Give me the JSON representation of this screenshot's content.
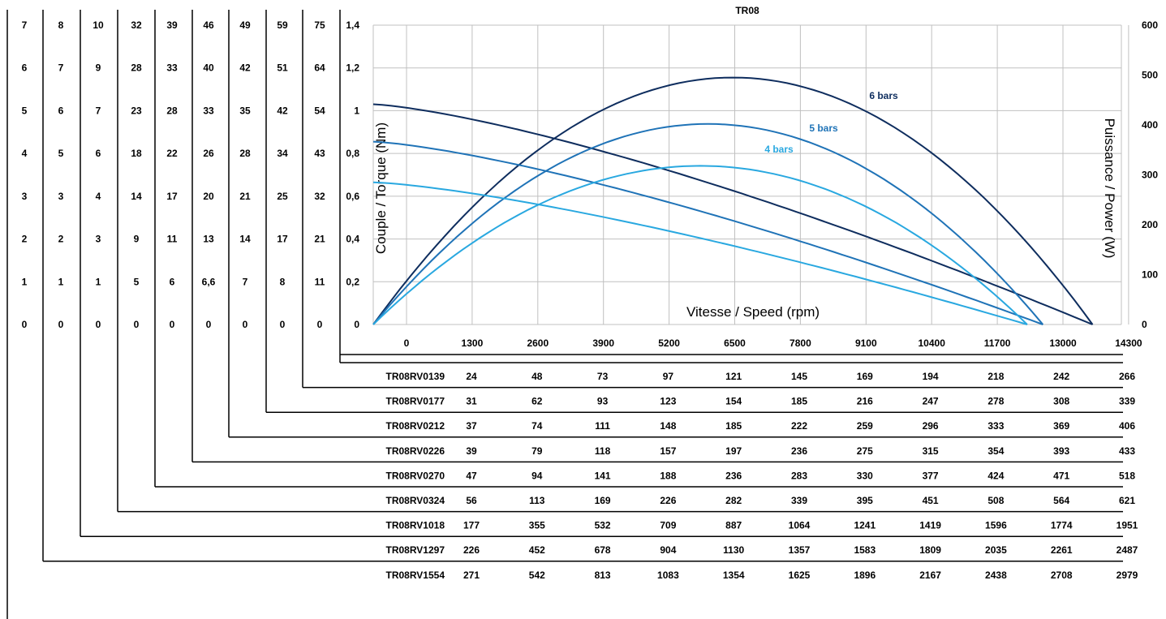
{
  "chart_data": {
    "type": "line",
    "title": "TR08",
    "xlabel": "Vitesse / Speed (rpm)",
    "ylabel": "Couple / Torque (Nm)",
    "ylabel_right": "Puissance / Power (W)",
    "xlim": [
      0,
      14300
    ],
    "ylim": [
      0,
      1.4
    ],
    "ylim_right": [
      0,
      600
    ],
    "grid": true,
    "x_ticks": [
      "0",
      "1300",
      "2600",
      "3900",
      "5200",
      "6500",
      "7800",
      "9100",
      "10400",
      "11700",
      "13000",
      "14300"
    ],
    "y_ticks": [
      "0",
      "0,2",
      "0,4",
      "0,6",
      "0,8",
      "1",
      "1,2",
      "1,4"
    ],
    "y_right_ticks": [
      "0",
      "100",
      "200",
      "300",
      "400",
      "500",
      "600"
    ],
    "series": [
      {
        "name": "6 bars",
        "color": "#0e2d5e",
        "free_speed": 13750,
        "stall_torque": 1.03,
        "max_power": 495
      },
      {
        "name": "5 bars",
        "color": "#1f73b7",
        "free_speed": 12800,
        "stall_torque": 0.855,
        "max_power": 402
      },
      {
        "name": "4 bars",
        "color": "#29a8e0",
        "free_speed": 12500,
        "stall_torque": 0.665,
        "max_power": 318
      }
    ]
  },
  "left_scales": [
    {
      "model": "TR08RV1554",
      "values": [
        "0",
        "1",
        "2",
        "3",
        "4",
        "5",
        "6",
        "7"
      ],
      "speeds": [
        "271",
        "542",
        "813",
        "1083",
        "1354",
        "1625",
        "1896",
        "2167",
        "2438",
        "2708",
        "2979"
      ]
    },
    {
      "model": "TR08RV1297",
      "values": [
        "0",
        "1",
        "2",
        "3",
        "5",
        "6",
        "7",
        "8"
      ],
      "speeds": [
        "226",
        "452",
        "678",
        "904",
        "1130",
        "1357",
        "1583",
        "1809",
        "2035",
        "2261",
        "2487"
      ]
    },
    {
      "model": "TR08RV1018",
      "values": [
        "0",
        "1",
        "3",
        "4",
        "6",
        "7",
        "9",
        "10"
      ],
      "speeds": [
        "177",
        "355",
        "532",
        "709",
        "887",
        "1064",
        "1241",
        "1419",
        "1596",
        "1774",
        "1951"
      ]
    },
    {
      "model": "TR08RV0324",
      "values": [
        "0",
        "5",
        "9",
        "14",
        "18",
        "23",
        "28",
        "32"
      ],
      "speeds": [
        "56",
        "113",
        "169",
        "226",
        "282",
        "339",
        "395",
        "451",
        "508",
        "564",
        "621"
      ]
    },
    {
      "model": "TR08RV0270",
      "values": [
        "0",
        "6",
        "11",
        "17",
        "22",
        "28",
        "33",
        "39"
      ],
      "speeds": [
        "47",
        "94",
        "141",
        "188",
        "236",
        "283",
        "330",
        "377",
        "424",
        "471",
        "518"
      ]
    },
    {
      "model": "TR08RV0226",
      "values": [
        "0",
        "6,6",
        "13",
        "20",
        "26",
        "33",
        "40",
        "46"
      ],
      "speeds": [
        "39",
        "79",
        "118",
        "157",
        "197",
        "236",
        "275",
        "315",
        "354",
        "393",
        "433"
      ]
    },
    {
      "model": "TR08RV0212",
      "values": [
        "0",
        "7",
        "14",
        "21",
        "28",
        "35",
        "42",
        "49"
      ],
      "speeds": [
        "37",
        "74",
        "111",
        "148",
        "185",
        "222",
        "259",
        "296",
        "333",
        "369",
        "406"
      ]
    },
    {
      "model": "TR08RV0177",
      "values": [
        "0",
        "8",
        "17",
        "25",
        "34",
        "42",
        "51",
        "59"
      ],
      "speeds": [
        "31",
        "62",
        "93",
        "123",
        "154",
        "185",
        "216",
        "247",
        "278",
        "308",
        "339"
      ]
    },
    {
      "model": "TR08RV0139",
      "values": [
        "0",
        "11",
        "21",
        "32",
        "43",
        "54",
        "64",
        "75"
      ],
      "speeds": [
        "24",
        "48",
        "73",
        "97",
        "121",
        "145",
        "169",
        "194",
        "218",
        "242",
        "266"
      ]
    }
  ]
}
